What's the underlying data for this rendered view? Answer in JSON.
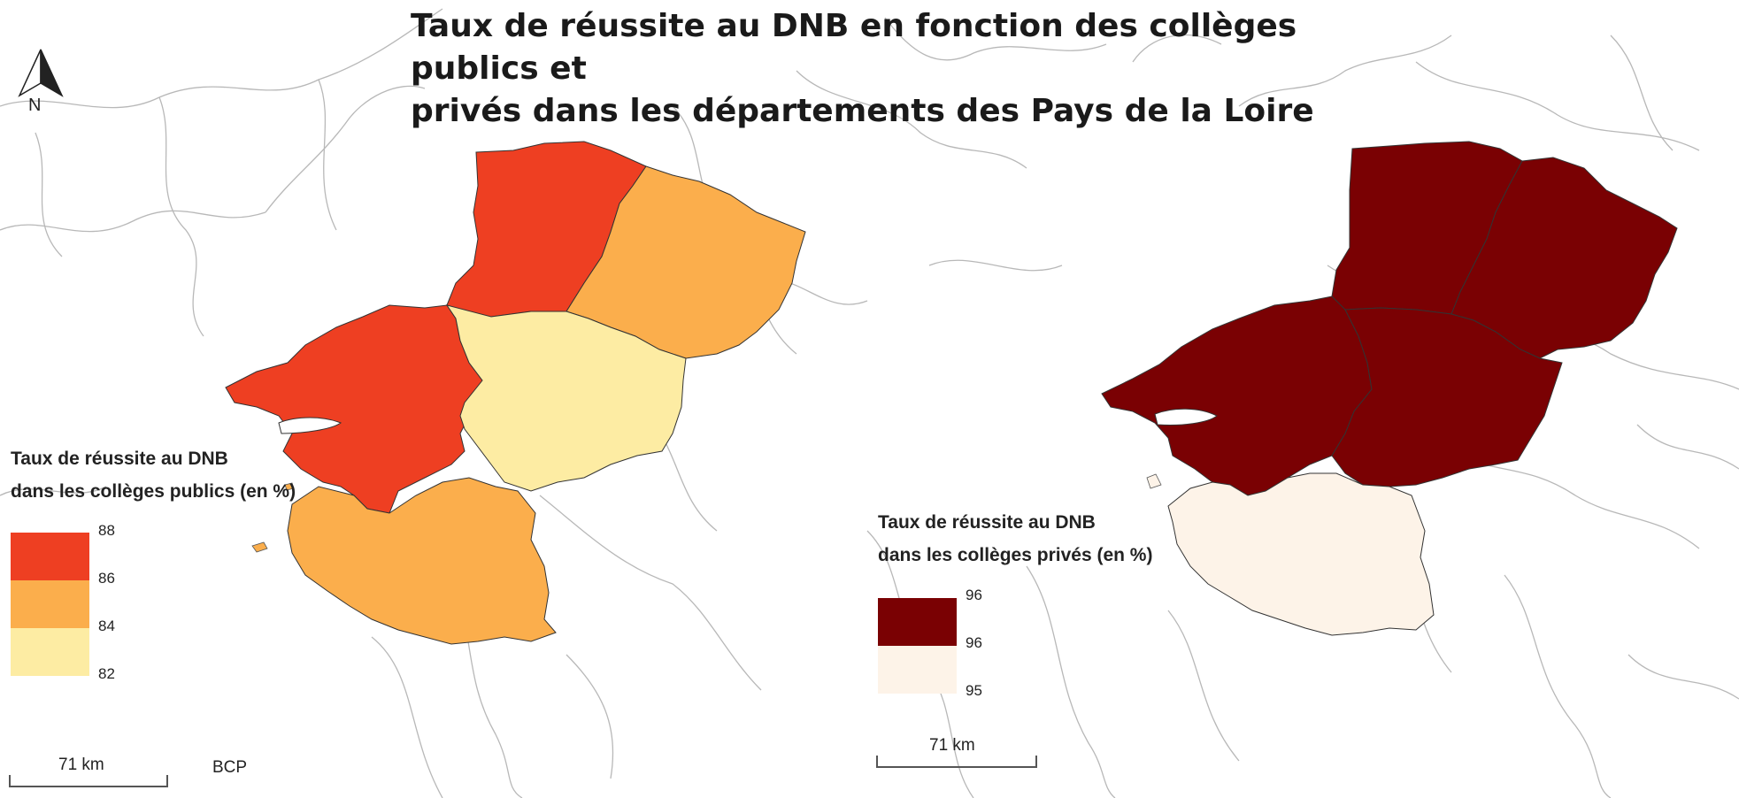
{
  "title": "Taux de réussite au DNB en fonction des collèges publics et\nprivés dans les départements des Pays de la Loire",
  "north_arrow": {
    "label": "N",
    "icon": "north-arrow-icon"
  },
  "maps": [
    {
      "legend": {
        "title": "Taux de réussite au DNB\ndans les collèges publics (en %)",
        "ticks": [
          "88",
          "86",
          "84",
          "82"
        ],
        "classes": [
          {
            "range": [
              86,
              88
            ],
            "color": "#ee3f22"
          },
          {
            "range": [
              84,
              86
            ],
            "color": "#fbae4c"
          },
          {
            "range": [
              82,
              84
            ],
            "color": "#fdeca3"
          }
        ]
      },
      "departments": [
        {
          "fill": "#ee3f22"
        },
        {
          "fill": "#fbae4c"
        },
        {
          "fill": "#ee3f22"
        },
        {
          "fill": "#fdeca3"
        },
        {
          "fill": "#fbae4c"
        }
      ],
      "scale_label": "71 km"
    },
    {
      "legend": {
        "title": "Taux de réussite au DNB\ndans les collèges privés (en %)",
        "ticks": [
          "96",
          "96",
          "95"
        ],
        "classes": [
          {
            "range": [
              96,
              96
            ],
            "color": "#7a0103"
          },
          {
            "range": [
              95,
              96
            ],
            "color": "#fdf3e8"
          }
        ]
      },
      "departments": [
        {
          "fill": "#7a0103"
        },
        {
          "fill": "#7a0103"
        },
        {
          "fill": "#7a0103"
        },
        {
          "fill": "#7a0103"
        },
        {
          "fill": "#fdf3e8"
        }
      ],
      "scale_label": "71 km"
    }
  ],
  "credit": "BCP"
}
